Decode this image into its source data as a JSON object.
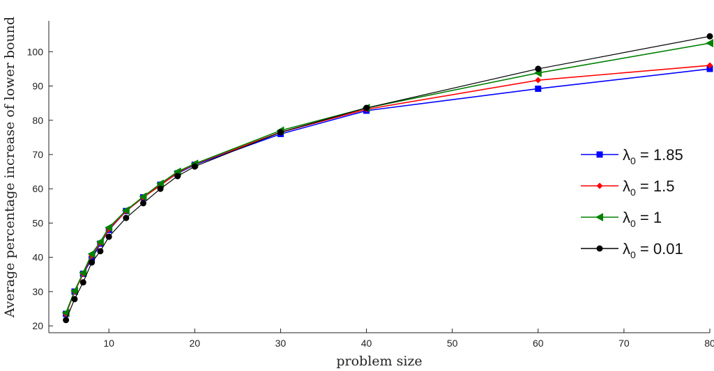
{
  "chart_data": {
    "type": "line",
    "xlabel": "problem size",
    "ylabel": "Average percentage increase of lower bound",
    "xlim": [
      3,
      80
    ],
    "ylim": [
      18,
      109
    ],
    "xticks": [
      10,
      20,
      30,
      40,
      50,
      60,
      70,
      80
    ],
    "yticks": [
      20,
      30,
      40,
      50,
      60,
      70,
      80,
      90,
      100
    ],
    "grid": false,
    "legend_position": "right",
    "series": [
      {
        "name": "λ0 = 1.85",
        "legend_symbol": "λ",
        "legend_subscript": "0",
        "legend_value": " = 1.85",
        "color": "#0000ff",
        "marker": "square",
        "x": [
          5,
          6,
          7,
          8,
          9,
          10,
          12,
          14,
          16,
          18,
          20,
          30,
          40,
          60,
          80
        ],
        "y": [
          23.5,
          30.0,
          35.2,
          39.5,
          44.0,
          48.0,
          53.5,
          57.5,
          61.2,
          64.5,
          67.0,
          76.0,
          82.8,
          89.2,
          95.0
        ]
      },
      {
        "name": "λ0 = 1.5",
        "legend_symbol": "λ",
        "legend_subscript": "0",
        "legend_value": " = 1.5",
        "color": "#ff0000",
        "marker": "diamond",
        "x": [
          5,
          6,
          7,
          8,
          9,
          10,
          12,
          14,
          16,
          18,
          20,
          30,
          40,
          60,
          80
        ],
        "y": [
          23.5,
          30.0,
          35.2,
          40.5,
          44.2,
          48.2,
          53.5,
          57.5,
          61.0,
          64.7,
          67.2,
          76.5,
          83.2,
          91.7,
          96.0
        ]
      },
      {
        "name": "λ0 = 1",
        "legend_symbol": "λ",
        "legend_subscript": "0",
        "legend_value": " = 1",
        "color": "#008000",
        "marker": "triangle-left",
        "x": [
          5,
          6,
          7,
          8,
          9,
          10,
          12,
          14,
          16,
          18,
          20,
          30,
          40,
          60,
          80
        ],
        "y": [
          23.8,
          30.2,
          35.5,
          41.0,
          44.5,
          48.7,
          53.7,
          57.7,
          61.5,
          65.0,
          67.3,
          77.0,
          83.6,
          93.8,
          102.5
        ]
      },
      {
        "name": "λ0 = 0.01",
        "legend_symbol": "λ",
        "legend_subscript": "0",
        "legend_value": " = 0.01",
        "color": "#000000",
        "marker": "circle",
        "x": [
          5,
          6,
          7,
          8,
          9,
          10,
          12,
          14,
          16,
          18,
          20,
          30,
          40,
          60,
          80
        ],
        "y": [
          21.7,
          27.8,
          32.7,
          38.5,
          41.8,
          46.0,
          51.5,
          55.8,
          60.0,
          63.7,
          66.5,
          76.5,
          83.6,
          95.0,
          104.5
        ]
      }
    ]
  }
}
